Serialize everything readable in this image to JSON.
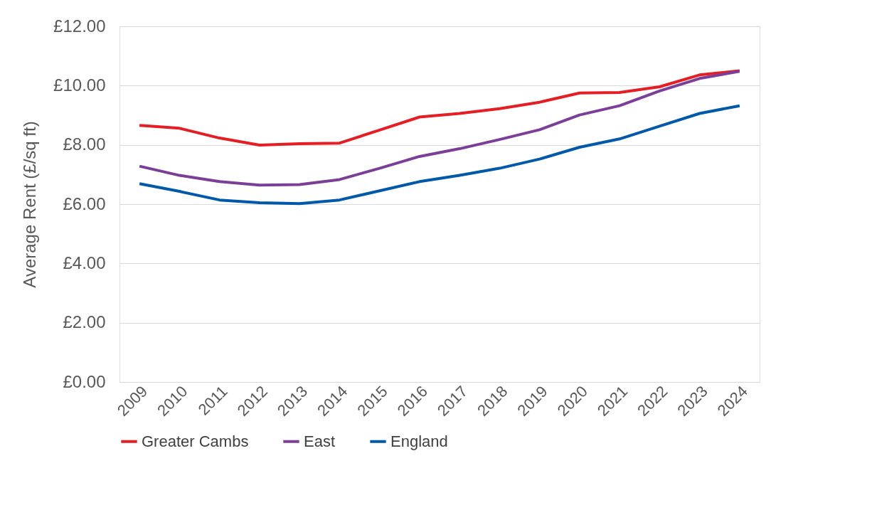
{
  "chart_data": {
    "type": "line",
    "ylabel": "Average Rent (£/sq ft)",
    "categories": [
      "2009",
      "2010",
      "2011",
      "2012",
      "2013",
      "2014",
      "2015",
      "2016",
      "2017",
      "2018",
      "2019",
      "2020",
      "2021",
      "2022",
      "2023",
      "2024"
    ],
    "series": [
      {
        "name": "Greater Cambs",
        "color": "#e31e24",
        "values": [
          8.66,
          8.56,
          8.23,
          7.99,
          8.04,
          8.06,
          8.5,
          8.94,
          9.06,
          9.22,
          9.44,
          9.75,
          9.77,
          9.96,
          10.36,
          10.5
        ]
      },
      {
        "name": "East",
        "color": "#7b3f98",
        "values": [
          7.28,
          6.97,
          6.76,
          6.64,
          6.66,
          6.83,
          7.21,
          7.61,
          7.87,
          8.18,
          8.51,
          9.01,
          9.32,
          9.82,
          10.24,
          10.48
        ]
      },
      {
        "name": "England",
        "color": "#0058a8",
        "values": [
          6.69,
          6.43,
          6.14,
          6.05,
          6.02,
          6.14,
          6.45,
          6.76,
          6.97,
          7.21,
          7.52,
          7.92,
          8.2,
          8.63,
          9.06,
          9.32
        ]
      }
    ],
    "ylim": [
      0,
      12
    ],
    "yticks": [
      {
        "value": 0,
        "label": "£0.00"
      },
      {
        "value": 2,
        "label": "£2.00"
      },
      {
        "value": 4,
        "label": "£4.00"
      },
      {
        "value": 6,
        "label": "£6.00"
      },
      {
        "value": 8,
        "label": "£8.00"
      },
      {
        "value": 10,
        "label": "£10.00"
      },
      {
        "value": 12,
        "label": "£12.00"
      }
    ],
    "grid": "y",
    "legend": "bottom",
    "marker": "none",
    "line_style": "solid"
  }
}
